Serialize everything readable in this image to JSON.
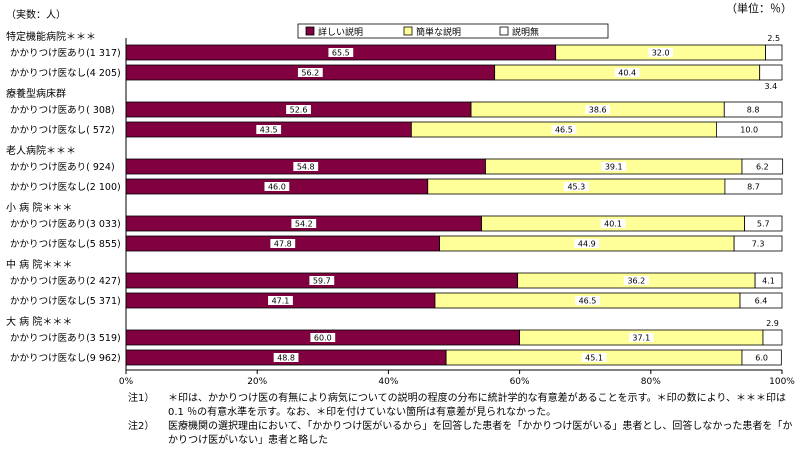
{
  "chart_data": {
    "type": "bar",
    "stacked": "percent",
    "orientation": "horizontal",
    "count_label": "（実数：人）",
    "unit_label": "（単位：％）",
    "legend_position": "top-right",
    "xlim": [
      0,
      100
    ],
    "xticks": [
      "0%",
      "20%",
      "40%",
      "60%",
      "80%",
      "100%"
    ],
    "series": [
      {
        "name": "詳しい説明",
        "color": "#800040"
      },
      {
        "name": "簡単な説明",
        "color": "#ffff99"
      },
      {
        "name": "説明無",
        "color": "#ffffff"
      }
    ],
    "groups": [
      {
        "title": "特定機能病院＊＊＊",
        "rows": [
          {
            "label": "かかりつけ医あり(1 317)",
            "values": [
              65.5,
              32.0,
              2.5
            ],
            "labels": [
              "65.5",
              "32.0",
              "2.5"
            ]
          },
          {
            "label": "かかりつけ医なし(4 205)",
            "values": [
              56.2,
              40.4,
              3.4
            ],
            "labels": [
              "56.2",
              "40.4",
              "3.4"
            ]
          }
        ]
      },
      {
        "title": "療養型病床群",
        "rows": [
          {
            "label": "かかりつけ医あり(  308)",
            "values": [
              52.6,
              38.6,
              8.8
            ],
            "labels": [
              "52.6",
              "38.6",
              "8.8"
            ]
          },
          {
            "label": "かかりつけ医なし(  572)",
            "values": [
              43.5,
              46.5,
              10.0
            ],
            "labels": [
              "43.5",
              "46.5",
              "10.0"
            ]
          }
        ]
      },
      {
        "title": "老人病院＊＊＊",
        "rows": [
          {
            "label": "かかりつけ医あり(  924)",
            "values": [
              54.8,
              39.1,
              6.2
            ],
            "labels": [
              "54.8",
              "39.1",
              "6.2"
            ]
          },
          {
            "label": "かかりつけ医なし(2 100)",
            "values": [
              46.0,
              45.3,
              8.7
            ],
            "labels": [
              "46.0",
              "45.3",
              "8.7"
            ]
          }
        ]
      },
      {
        "title": "小 病 院＊＊＊",
        "rows": [
          {
            "label": "かかりつけ医あり(3 033)",
            "values": [
              54.2,
              40.1,
              5.7
            ],
            "labels": [
              "54.2",
              "40.1",
              "5.7"
            ]
          },
          {
            "label": "かかりつけ医なし(5 855)",
            "values": [
              47.8,
              44.9,
              7.3
            ],
            "labels": [
              "47.8",
              "44.9",
              "7.3"
            ]
          }
        ]
      },
      {
        "title": "中 病 院＊＊＊",
        "rows": [
          {
            "label": "かかりつけ医あり(2 427)",
            "values": [
              59.7,
              36.2,
              4.1
            ],
            "labels": [
              "59.7",
              "36.2",
              "4.1"
            ]
          },
          {
            "label": "かかりつけ医なし(5 371)",
            "values": [
              47.1,
              46.5,
              6.4
            ],
            "labels": [
              "47.1",
              "46.5",
              "6.4"
            ]
          }
        ]
      },
      {
        "title": "大 病 院＊＊＊",
        "rows": [
          {
            "label": "かかりつけ医あり(3 519)",
            "values": [
              60.0,
              37.1,
              2.9
            ],
            "labels": [
              "60.0",
              "37.1",
              "2.9"
            ]
          },
          {
            "label": "かかりつけ医なし(9 962)",
            "values": [
              48.8,
              45.1,
              6.0
            ],
            "labels": [
              "48.8",
              "45.1",
              "6.0"
            ]
          }
        ]
      }
    ]
  },
  "notes": [
    {
      "id": "注1）",
      "text": "＊印は、かかりつけ医の有無により病気についての説明の程度の分布に統計学的な有意差があることを示す。＊印の数により、＊＊＊印は 0.1 ％の有意水準を示す。なお、＊印を付けていない箇所は有意差が見られなかった。"
    },
    {
      "id": "注2）",
      "text": "医療機関の選択理由において、「かかりつけ医がいるから」を回答した患者を「かかりつけ医がいる」患者とし、回答しなかった患者を「かかりつけ医がいない」患者と略した"
    }
  ]
}
